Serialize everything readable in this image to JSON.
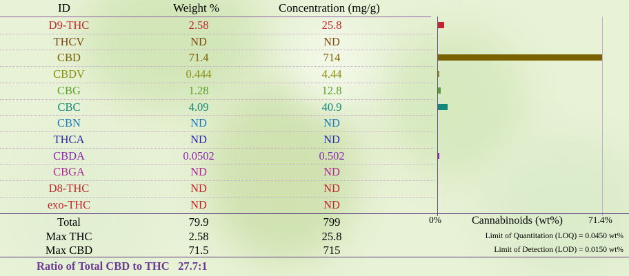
{
  "headers": {
    "id": "ID",
    "weight": "Weight %",
    "concentration": "Concentration (mg/g)"
  },
  "rows": [
    {
      "id": "D9-THC",
      "weight": "2.58",
      "concentration": "25.8",
      "color": "#c0272d",
      "value": 2.58
    },
    {
      "id": "THCV",
      "weight": "ND",
      "concentration": "ND",
      "color": "#7a4a12",
      "value": 0
    },
    {
      "id": "CBD",
      "weight": "71.4",
      "concentration": "714",
      "color": "#7a6200",
      "value": 71.4
    },
    {
      "id": "CBDV",
      "weight": "0.444",
      "concentration": "4.44",
      "color": "#8a8f12",
      "value": 0.444
    },
    {
      "id": "CBG",
      "weight": "1.28",
      "concentration": "12.8",
      "color": "#5aa02c",
      "value": 1.28
    },
    {
      "id": "CBC",
      "weight": "4.09",
      "concentration": "40.9",
      "color": "#12877a",
      "value": 4.09
    },
    {
      "id": "CBN",
      "weight": "ND",
      "concentration": "ND",
      "color": "#1f7ab8",
      "value": 0
    },
    {
      "id": "THCA",
      "weight": "ND",
      "concentration": "ND",
      "color": "#2a2aa8",
      "value": 0
    },
    {
      "id": "CBDA",
      "weight": "0.0502",
      "concentration": "0.502",
      "color": "#8b2ab0",
      "value": 0.0502
    },
    {
      "id": "CBGA",
      "weight": "ND",
      "concentration": "ND",
      "color": "#b02a96",
      "value": 0
    },
    {
      "id": "D8-THC",
      "weight": "ND",
      "concentration": "ND",
      "color": "#c0272d",
      "value": 0
    },
    {
      "id": "exo-THC",
      "weight": "ND",
      "concentration": "ND",
      "color": "#c0272d",
      "value": 0
    }
  ],
  "totals": [
    {
      "label": "Total",
      "weight": "79.9",
      "concentration": "799"
    },
    {
      "label": "Max THC",
      "weight": "2.58",
      "concentration": "25.8"
    },
    {
      "label": "Max CBD",
      "weight": "71.5",
      "concentration": "715"
    }
  ],
  "chart": {
    "axis_min_label": "0%",
    "axis_max_label": "71.4%",
    "axis_max": 71.4,
    "title": "Cannabinoids (wt%)"
  },
  "limits": {
    "loq": "Limit of Quantitation (LOQ) = 0.0450 wt%",
    "lod": "Limit of Detection (LOD) = 0.0150 wt%"
  },
  "ratio": {
    "label": "Ratio of Total CBD to THC",
    "value": "27.7:1"
  }
}
